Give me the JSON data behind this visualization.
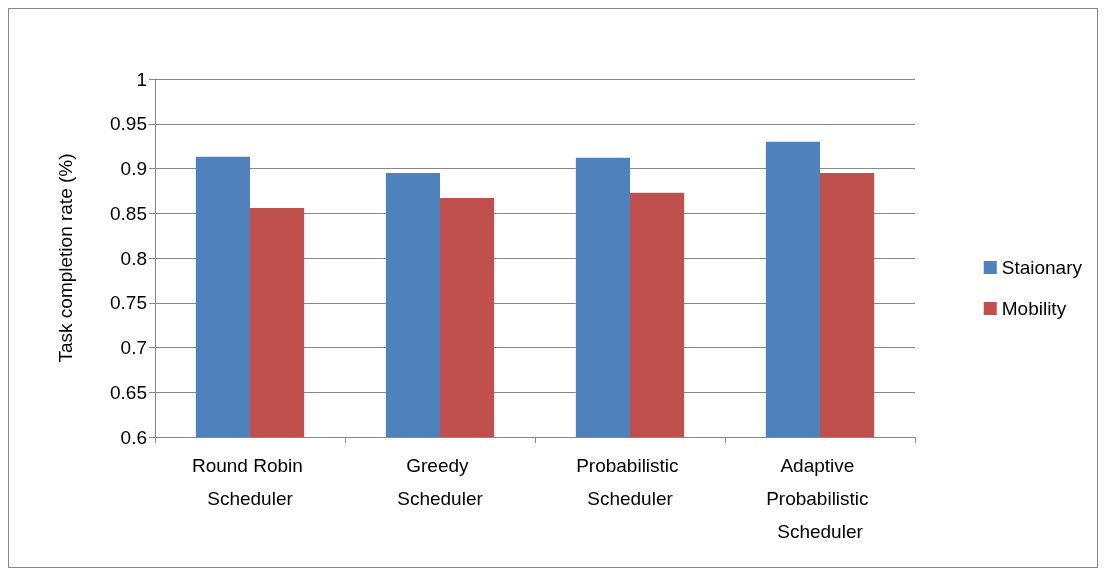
{
  "chart_data": {
    "type": "bar",
    "ylabel": "Task completion rate (%)",
    "categories": [
      "Round Robin Scheduler",
      "Greedy Scheduler",
      "Probabilistic Scheduler",
      "Adaptive Probabilistic Scheduler"
    ],
    "series": [
      {
        "name": "Staionary",
        "color": "#4f81bd",
        "values": [
          0.913,
          0.895,
          0.912,
          0.93
        ]
      },
      {
        "name": "Mobility",
        "color": "#c0504d",
        "values": [
          0.856,
          0.867,
          0.873,
          0.895
        ]
      }
    ],
    "ylim": [
      0.6,
      1
    ],
    "yticks": [
      0.6,
      0.65,
      0.7,
      0.75,
      0.8,
      0.85,
      0.9,
      0.95,
      1
    ],
    "grid": "y",
    "legend": "right"
  }
}
